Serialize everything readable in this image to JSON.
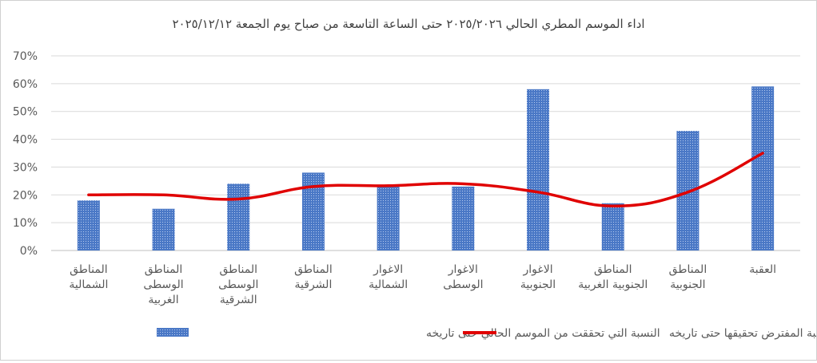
{
  "chart_data": {
    "type": "bar",
    "title": "اداء الموسم المطري الحالي ٢٠٢٥/٢٠٢٦ حتى الساعة التاسعة من صباح يوم الجمعة ٢٠٢٥/١٢/١٢",
    "categories": [
      [
        "المناطق",
        "الشمالية"
      ],
      [
        "المناطق",
        "الوسطى",
        "الغربية"
      ],
      [
        "المناطق",
        "الوسطى",
        "الشرقية"
      ],
      [
        "المناطق",
        "الشرقية"
      ],
      [
        "الاغوار",
        "الشمالية"
      ],
      [
        "الاغوار",
        "الوسطى"
      ],
      [
        "الاغوار",
        "الجنوبية"
      ],
      [
        "المناطق",
        "الجنوبية الغربية"
      ],
      [
        "المناطق",
        "الجنوبية"
      ],
      [
        "العقبة"
      ]
    ],
    "series": [
      {
        "name": "النسبة التي تحققت من الموسم الحالي حتى تاريخه",
        "type": "bar",
        "color": "#4472C4",
        "values": [
          18,
          15,
          24,
          28,
          23,
          23,
          58,
          17,
          43,
          59
        ]
      },
      {
        "name": "النسبة المفترض تحقيقها حتى تاريخه",
        "type": "line",
        "color": "#E00000",
        "values": [
          20,
          20,
          18.5,
          23,
          23.3,
          24,
          21,
          16,
          21,
          35
        ]
      }
    ],
    "yticks": [
      "0%",
      "10%",
      "20%",
      "30%",
      "40%",
      "50%",
      "60%",
      "70%"
    ],
    "ylim": [
      0,
      70
    ],
    "grid": true,
    "legend_position": "bottom"
  }
}
